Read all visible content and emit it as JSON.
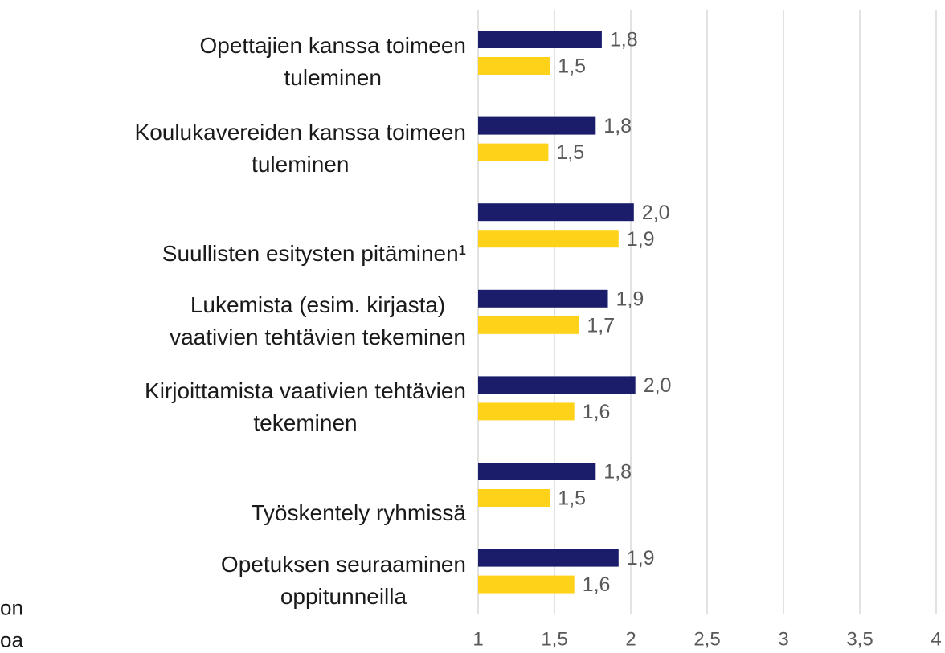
{
  "chart_data": {
    "type": "hbar",
    "categories": [
      "Opettajien kanssa toimeen\ntuleminen",
      "Koulukavereiden kanssa toimeen\ntuleminen",
      "Suullisten esitysten pitäminen¹",
      "Lukemista (esim. kirjasta)\nvaativien tehtävien tekeminen",
      "Kirjoittamista vaativien tehtävien\ntekeminen",
      "Työskentely ryhmissä",
      "Opetuksen seuraaminen\noppitunneilla"
    ],
    "series": [
      {
        "color": "#1b1d6b",
        "values": [
          1.81,
          1.77,
          2.02,
          1.85,
          2.03,
          1.77,
          1.92
        ],
        "value_labels": [
          "1,8",
          "1,8",
          "2,0",
          "1,9",
          "2,0",
          "1,8",
          "1,9"
        ]
      },
      {
        "color": "#ffd21a",
        "values": [
          1.47,
          1.46,
          1.92,
          1.66,
          1.63,
          1.47,
          1.63
        ],
        "value_labels": [
          "1,5",
          "1,5",
          "1,9",
          "1,7",
          "1,6",
          "1,5",
          "1,6"
        ]
      }
    ],
    "xlim": [
      1,
      4
    ],
    "xticks": [
      1,
      {
        "value": 1.5,
        "label": "1,5"
      },
      2,
      {
        "value": 2.5,
        "label": "2,5"
      },
      3,
      {
        "value": 3.5,
        "label": "3,5"
      },
      4
    ],
    "grid": true,
    "annotations": [
      "on",
      "oa"
    ]
  }
}
